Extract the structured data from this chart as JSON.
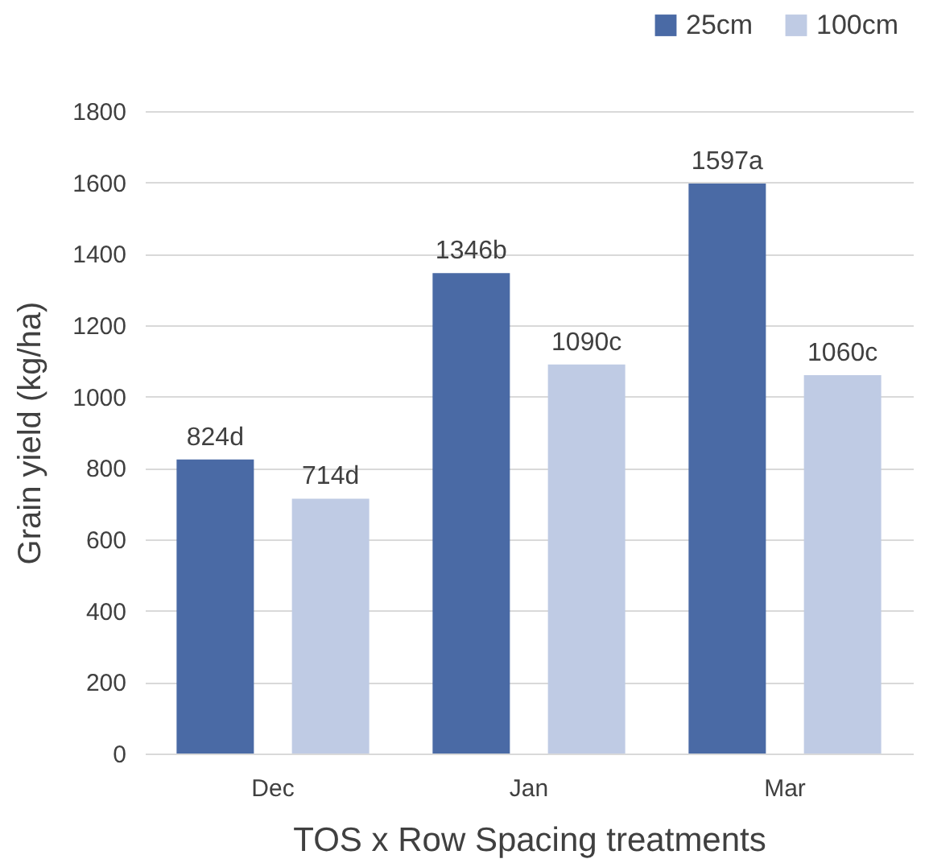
{
  "chart_data": {
    "type": "bar",
    "xlabel": "TOS x Row Spacing treatments",
    "ylabel": "Grain yield (kg/ha)",
    "categories": [
      "Dec",
      "Jan",
      "Mar"
    ],
    "series": [
      {
        "name": "25cm",
        "color": "#4a6aa5",
        "values": [
          824,
          1346,
          1597
        ],
        "value_labels": [
          "824d",
          "1346b",
          "1597a"
        ]
      },
      {
        "name": "100cm",
        "color": "#bfcbe4",
        "values": [
          714,
          1090,
          1060
        ],
        "value_labels": [
          "714d",
          "1090c",
          "1060c"
        ]
      }
    ],
    "ylim": [
      0,
      1800
    ],
    "yticks": [
      0,
      200,
      400,
      600,
      800,
      1000,
      1200,
      1400,
      1600,
      1800
    ],
    "grid": "y",
    "legend": "top right"
  }
}
